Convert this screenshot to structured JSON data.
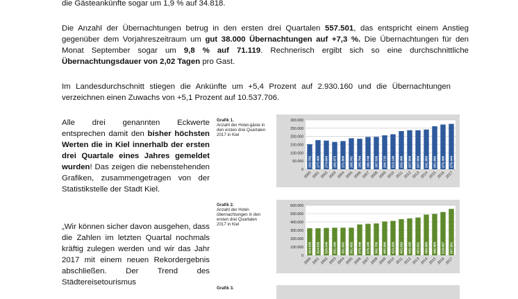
{
  "paragraphs": {
    "p0": "die Gästeankünfte sogar um 1,9 % auf 34.818.",
    "p1_a": "Die Anzahl der Übernachtungen betrug in den ersten drei Quartalen ",
    "p1_b": "557.501",
    "p1_c": ", das entspricht einem Anstieg gegenüber dem Vorjahreszeitraum um ",
    "p1_d": "gut 38.000 Übernachtungen auf +7,3 %.",
    "p1_e": " Die Übernachtungen für den Monat September sogar um ",
    "p1_f": "9,8 % auf 71.119",
    "p1_g": ". Rechnerisch ergibt sich so eine durchschnittliche ",
    "p1_h": "Übernachtungsdauer von 2,02 Tagen",
    "p1_i": " pro Gast.",
    "p2": "Im Landesdurchschnitt stiegen die Ankünfte um +5,4 Prozent auf 2.930.160 und die Übernachtungen verzeichnen einen Zuwachs von +5,1 Prozent auf 10.537.706.",
    "pl1_a": "Alle drei genannten Eckwerte entsprechen damit den ",
    "pl1_b": "bisher höchsten Werten die in Kiel innerhalb der ersten drei Quartale eines Jahres gemeldet wurden",
    "pl1_c": "! Das zeigen die nebenstehenden Grafiken, zusammengetragen von der Statistik­stelle der Stadt Kiel.",
    "pl2": "„Wir können sicher davon ausgehen, dass die Zahlen im letzten Quartal nochmals kräftig zulegen werden und wir das Jahr 2017 mit einem neuen Rekordergebnis abschließen. Der Trend des Städtereisetourismus"
  },
  "captions": {
    "g1_title": "Grafik 1.",
    "g1_text": "Anzahl der Hotel-gäste in den ersten drei Quartalen 2017 in Kiel",
    "g2_title": "Grafik 2.",
    "g2_text": "Anzahl der Hotel-übernachtungen in den ersten drei Quartalen 2017 in Kiel",
    "g3_title": "Grafik 3."
  },
  "colors": {
    "chart1_bar": "#2e5a9c",
    "chart2_bar": "#5e8a2c",
    "chart_bg": "#d9d9d9",
    "plot_bg": "#ffffff"
  },
  "chart_data": [
    {
      "type": "bar",
      "categories": [
        "2000",
        "2001",
        "2002",
        "2003",
        "2004",
        "2005",
        "2006",
        "2007",
        "2008",
        "2009",
        "2010",
        "2011",
        "2012",
        "2013",
        "2014",
        "2015",
        "2016",
        "2017"
      ],
      "values": [
        152782,
        177400,
        174684,
        166473,
        171809,
        188791,
        185794,
        196749,
        197526,
        206715,
        213198,
        232496,
        237809,
        237809,
        241993,
        261992,
        272496,
        276444
      ],
      "value_labels": [
        "152.782",
        "177.400",
        "174.684",
        "166.473",
        "171.809",
        "188.791",
        "185.794",
        "196.749",
        "197.526",
        "206.715",
        "213.198",
        "232.496",
        "237.809",
        "237.809",
        "241.993",
        "261.992",
        "272.496",
        "276.444"
      ],
      "yticks": [
        "0",
        "50.000",
        "100.000",
        "150.000",
        "200.000",
        "250.000",
        "300.000"
      ],
      "ylim": [
        0,
        300000
      ],
      "grid": true
    },
    {
      "type": "bar",
      "categories": [
        "2000",
        "2001",
        "2002",
        "2003",
        "2004",
        "2005",
        "2006",
        "2007",
        "2008",
        "2009",
        "2010",
        "2011",
        "2012",
        "2013",
        "2014",
        "2015",
        "2016",
        "2017"
      ],
      "values": [
        324838,
        324838,
        328646,
        331436,
        331652,
        331652,
        370446,
        378186,
        382700,
        405886,
        413256,
        433832,
        443435,
        453831,
        488880,
        496960,
        519667,
        557501
      ],
      "value_labels": [
        "324.838",
        "324.838",
        "328.646",
        "331.436",
        "331.652",
        "331.652",
        "370.446",
        "378.186",
        "382.700",
        "405.886",
        "413.256",
        "433.832",
        "443.435",
        "453.831",
        "488.880",
        "496.960",
        "519.667",
        "557.501"
      ],
      "yticks": [
        "0",
        "100.000",
        "200.000",
        "300.000",
        "400.000",
        "500.000",
        "600.000"
      ],
      "ylim": [
        0,
        600000
      ],
      "grid": true
    }
  ]
}
